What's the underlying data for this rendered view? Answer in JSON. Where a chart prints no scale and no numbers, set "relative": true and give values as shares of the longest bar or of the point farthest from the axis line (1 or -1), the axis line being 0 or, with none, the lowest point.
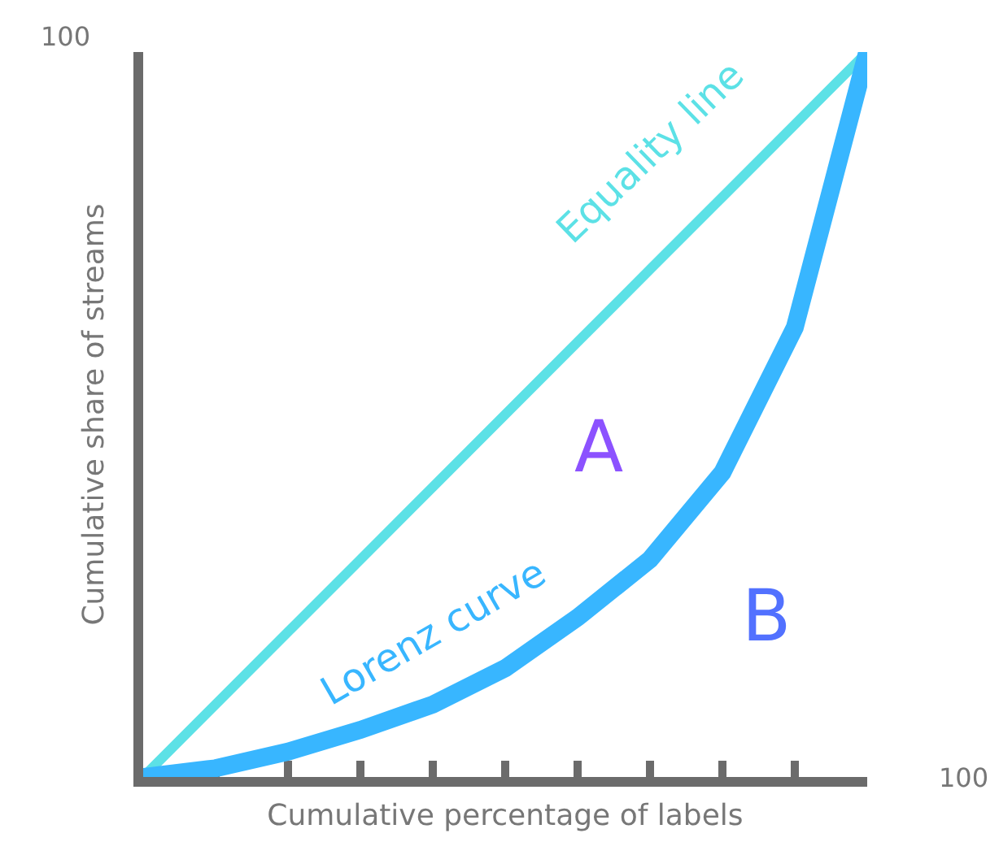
{
  "chart_data": {
    "type": "line",
    "relative": true,
    "xlabel": "Cumulative percentage of labels",
    "ylabel": "Cumulative share of streams",
    "categories": [
      null,
      null,
      null,
      null,
      null,
      null,
      null,
      null,
      null,
      null,
      null
    ],
    "series": [
      {
        "name": "Equality line",
        "color": "#5ce1e6",
        "values": [
          0,
          0.1,
          0.2,
          0.3,
          0.4,
          0.5,
          0.6,
          0.7,
          0.8,
          0.9,
          1
        ]
      },
      {
        "name": "Lorenz curve",
        "color": "#38b6ff",
        "values": [
          0,
          0.012,
          0.035,
          0.065,
          0.1,
          0.15,
          0.22,
          0.3,
          0.42,
          0.62,
          1
        ]
      }
    ],
    "annotations": [
      "100",
      "100",
      "A",
      "B"
    ],
    "legend": false,
    "marker": "none"
  }
}
